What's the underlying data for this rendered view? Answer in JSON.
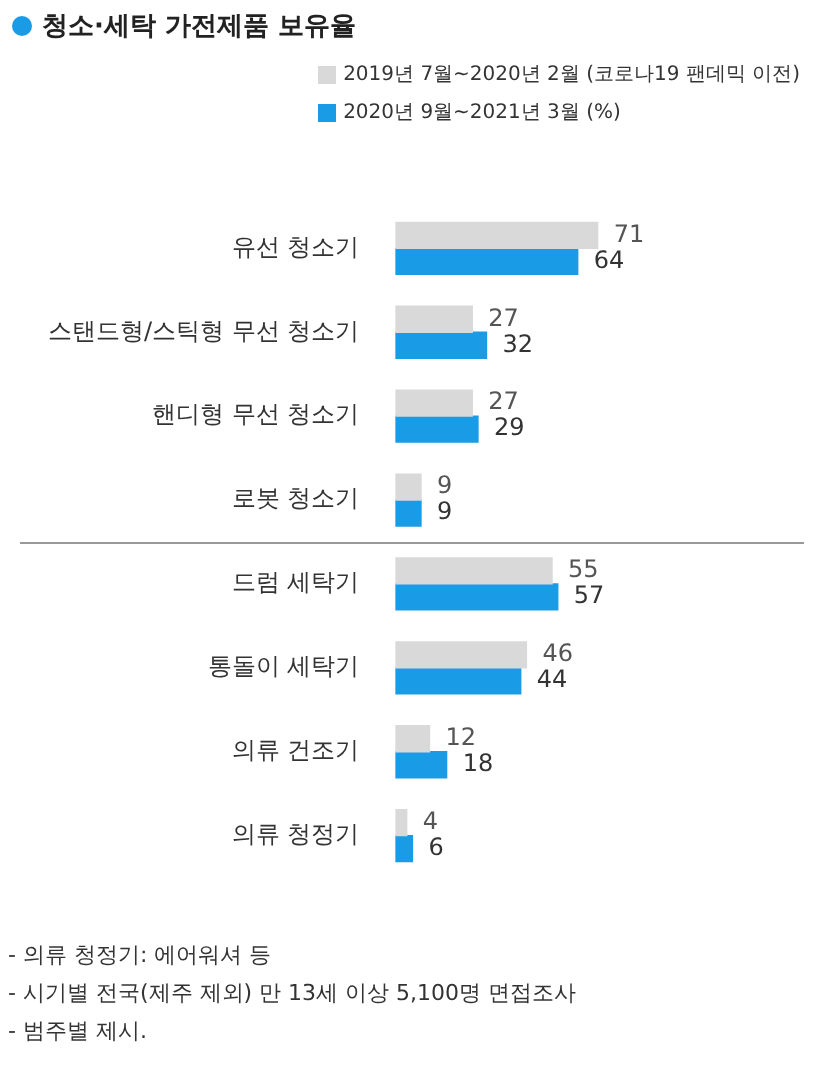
{
  "chart_data": {
    "type": "bar",
    "orientation": "horizontal",
    "title": "청소·세탁 가전제품 보유율",
    "categories": [
      "유선 청소기",
      "스탠드형/스틱형 무선 청소기",
      "핸디형 무선 청소기",
      "로봇 청소기",
      "드럼 세탁기",
      "통돌이 세탁기",
      "의류 건조기",
      "의류 청정기"
    ],
    "series": [
      {
        "name": "2019년 7월~2020년 2월 (코로나19 팬데믹 이전)",
        "color": "#d9d9d9",
        "values": [
          71,
          27,
          27,
          9,
          55,
          46,
          12,
          4
        ]
      },
      {
        "name": "2020년 9월~2021년 3월 (%)",
        "color": "#1a9be6",
        "values": [
          64,
          32,
          29,
          9,
          57,
          44,
          18,
          6
        ]
      }
    ],
    "data_labels": true,
    "legend": "top right",
    "tick_labels": "y",
    "annotations": [
      "- 의류 청정기: 에어워셔 등",
      "- 시기별 전국(제주 제외) 만 13세 이상 5,100명 면접조사",
      "- 범주별 제시."
    ]
  }
}
